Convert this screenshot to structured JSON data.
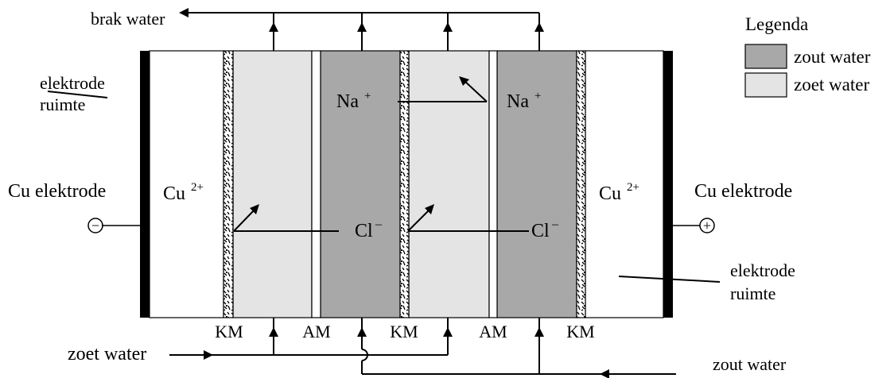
{
  "labels": {
    "brak_water": "brak water",
    "elektrode_ruimte_left_1": "elektrode",
    "elektrode_ruimte_left_2": "ruimte",
    "elektrode_ruimte_right_1": "elektrode",
    "elektrode_ruimte_right_2": "ruimte",
    "cu_elektrode_left": "Cu elektrode",
    "cu_elektrode_right": "Cu elektrode",
    "cu_ion": "Cu",
    "cu_charge": "2+",
    "na_ion": "Na",
    "na_charge": "+",
    "cl_ion": "Cl",
    "cl_charge": "–",
    "minus_sign": "−",
    "plus_sign": "+",
    "zoet_water_in": "zoet water",
    "zout_water_in": "zout water",
    "km": "KM",
    "am": "AM"
  },
  "legend": {
    "title": "Legenda",
    "items": [
      {
        "label": "zout water",
        "color": "#a8a8a8"
      },
      {
        "label": "zoet water",
        "color": "#e4e4e4"
      }
    ]
  },
  "colors": {
    "zout": "#a8a8a8",
    "zoet": "#e4e4e4",
    "electrode": "#000000"
  }
}
